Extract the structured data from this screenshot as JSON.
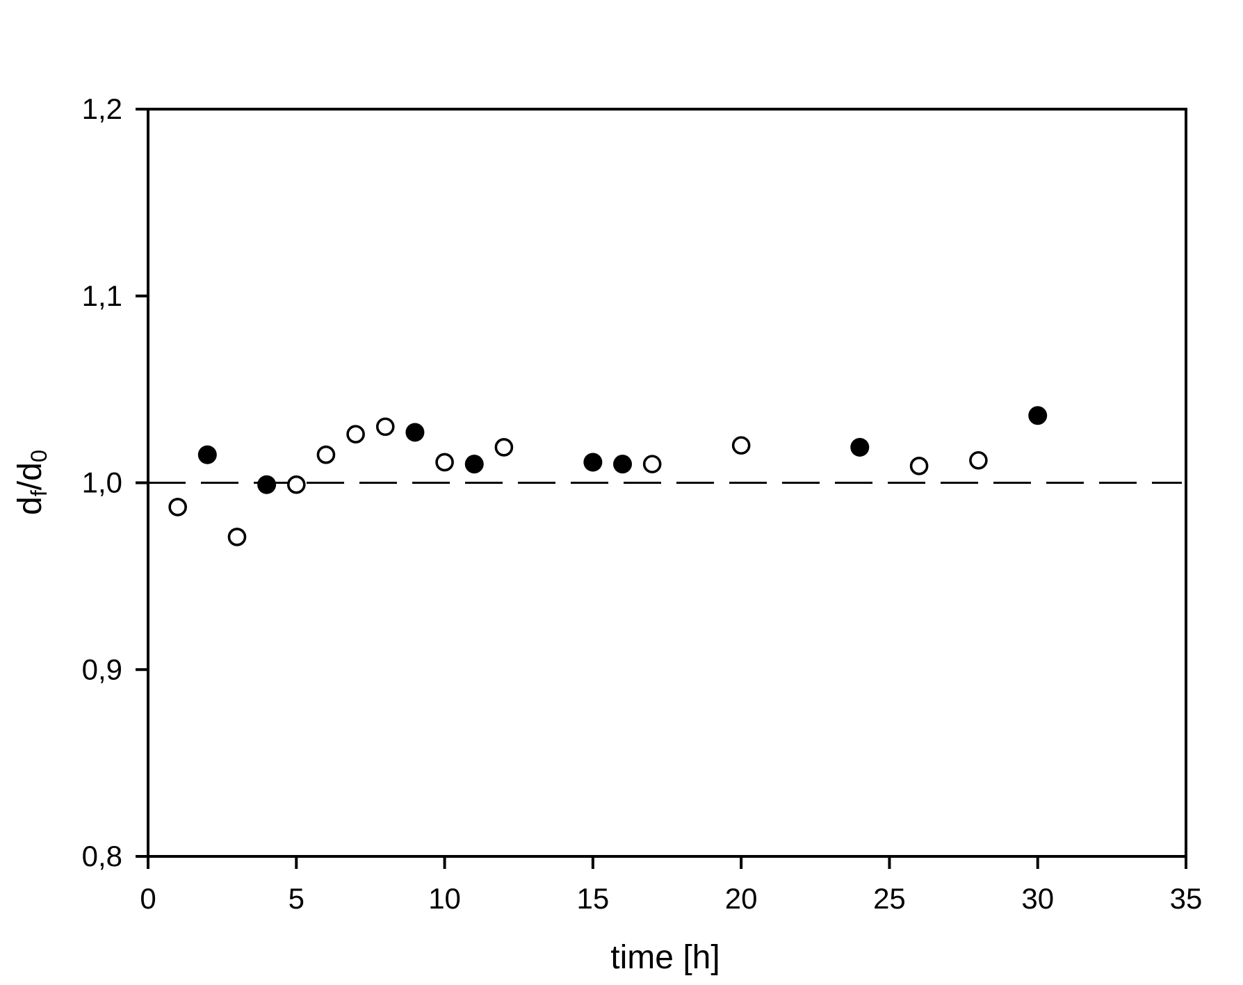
{
  "colors": {
    "foreground": "#000000",
    "background": "#ffffff"
  },
  "labels": {
    "x_axis_title": "time [h]",
    "y_axis_title": {
      "base1": "d",
      "sub1": "f",
      "divider": "/",
      "base2": "d",
      "sub2": "0"
    }
  },
  "chart_data": {
    "type": "scatter",
    "title": "",
    "xlabel": "time [h]",
    "ylabel": "d_f/d_0",
    "xlim": [
      0,
      35
    ],
    "ylim": [
      0.8,
      1.2
    ],
    "grid": false,
    "legend": "none",
    "decimal_separator": ",",
    "x_ticks": {
      "values": [
        0,
        5,
        10,
        15,
        20,
        25,
        30,
        35
      ],
      "labels": [
        "0",
        "5",
        "10",
        "15",
        "20",
        "25",
        "30",
        "35"
      ]
    },
    "y_ticks": {
      "values": [
        0.8,
        0.9,
        1.0,
        1.1,
        1.2
      ],
      "labels": [
        "0,8",
        "0,9",
        "1,0",
        "1,1",
        "1,2"
      ]
    },
    "reference_line": {
      "y": 1.0,
      "style": "long-dash"
    },
    "series": [
      {
        "name": "open circles",
        "marker": "circle-open",
        "stroke": "#000000",
        "fill": "#ffffff",
        "points": [
          [
            1,
            0.987
          ],
          [
            3,
            0.971
          ],
          [
            5,
            0.999
          ],
          [
            6,
            1.015
          ],
          [
            7,
            1.026
          ],
          [
            8,
            1.03
          ],
          [
            10,
            1.011
          ],
          [
            12,
            1.019
          ],
          [
            17,
            1.01
          ],
          [
            20,
            1.02
          ],
          [
            26,
            1.009
          ],
          [
            28,
            1.012
          ]
        ]
      },
      {
        "name": "filled circles",
        "marker": "circle-filled",
        "stroke": "#000000",
        "fill": "#000000",
        "points": [
          [
            2,
            1.015
          ],
          [
            4,
            0.999
          ],
          [
            9,
            1.027
          ],
          [
            11,
            1.01
          ],
          [
            15,
            1.011
          ],
          [
            16,
            1.01
          ],
          [
            24,
            1.019
          ],
          [
            30,
            1.036
          ]
        ]
      }
    ]
  }
}
